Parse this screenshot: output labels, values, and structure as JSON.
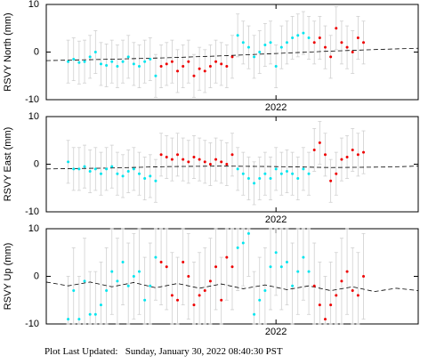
{
  "chart_data": [
    {
      "type": "scatter",
      "ylabel": "RSVY North (mm)",
      "xlim": [
        2021.79,
        2022.13
      ],
      "xticks": [
        2022
      ],
      "ylim": [
        -10,
        10
      ],
      "yticks": [
        -10,
        0,
        10
      ],
      "series": [
        {
          "color": "#00e5ee",
          "error": 4.5,
          "x": [
            2021.81,
            2021.815,
            2021.82,
            2021.825,
            2021.83,
            2021.835,
            2021.84,
            2021.845,
            2021.85,
            2021.855,
            2021.86,
            2021.865,
            2021.87,
            2021.875,
            2021.88,
            2021.885,
            2021.89,
            2021.965,
            2021.97,
            2021.975,
            2021.98,
            2021.985,
            2021.99,
            2021.995,
            2022.0,
            2022.005,
            2022.01,
            2022.015,
            2022.02,
            2022.025,
            2022.03
          ],
          "values": [
            -2,
            -1.5,
            -2.2,
            -2,
            -1,
            0,
            -2.5,
            -2.8,
            -2,
            -3,
            -2,
            -1,
            -2.5,
            -3,
            -2,
            -1.5,
            -5,
            3.5,
            2,
            1,
            -1,
            0,
            1.5,
            2,
            -3,
            1,
            2,
            3,
            3.5,
            4,
            3
          ]
        },
        {
          "color": "#ee0000",
          "error": 4.5,
          "x": [
            2021.895,
            2021.9,
            2021.905,
            2021.91,
            2021.915,
            2021.92,
            2021.925,
            2021.93,
            2021.935,
            2021.94,
            2021.945,
            2021.95,
            2021.955,
            2021.96,
            2022.035,
            2022.04,
            2022.045,
            2022.05,
            2022.055,
            2022.06,
            2022.065,
            2022.07,
            2022.075,
            2022.08
          ],
          "values": [
            -3,
            -2.5,
            -2,
            -4,
            -3,
            -2,
            -5,
            -3.5,
            -4,
            -3,
            -2,
            -2.5,
            -3,
            -1,
            2,
            3,
            1,
            -1,
            5,
            2,
            1,
            0,
            3,
            2
          ]
        },
        {
          "color": "#000000",
          "style": "dashed",
          "x": [
            2021.79,
            2021.85,
            2021.9,
            2021.95,
            2022.0,
            2022.05,
            2022.1,
            2022.13
          ],
          "values": [
            -1.8,
            -1.5,
            -1.2,
            -0.8,
            -0.3,
            0.2,
            0.6,
            0.8
          ]
        }
      ]
    },
    {
      "type": "scatter",
      "ylabel": "RSVY East (mm)",
      "xlim": [
        2021.79,
        2022.13
      ],
      "xticks": [
        2022
      ],
      "ylim": [
        -10,
        10
      ],
      "yticks": [
        -10,
        0,
        10
      ],
      "series": [
        {
          "color": "#00e5ee",
          "error": 4.5,
          "x": [
            2021.81,
            2021.815,
            2021.82,
            2021.825,
            2021.83,
            2021.835,
            2021.84,
            2021.845,
            2021.85,
            2021.855,
            2021.86,
            2021.865,
            2021.87,
            2021.875,
            2021.88,
            2021.885,
            2021.89,
            2021.965,
            2021.97,
            2021.975,
            2021.98,
            2021.985,
            2021.99,
            2021.995,
            2022.0,
            2022.005,
            2022.01,
            2022.015,
            2022.02,
            2022.025,
            2022.03
          ],
          "values": [
            0.5,
            -1,
            -1,
            -0.5,
            -1.5,
            -1,
            -2,
            -1,
            -0.5,
            -2,
            -2.5,
            -1.5,
            -1,
            -2,
            -3,
            -2.5,
            -3.5,
            -1,
            -2,
            -3,
            -4,
            -3,
            -2,
            -3,
            -1,
            -2,
            -1.5,
            -2,
            -3,
            -1,
            -2
          ]
        },
        {
          "color": "#ee0000",
          "error": 4.5,
          "x": [
            2021.895,
            2021.9,
            2021.905,
            2021.91,
            2021.915,
            2021.92,
            2021.925,
            2021.93,
            2021.935,
            2021.94,
            2021.945,
            2021.95,
            2021.955,
            2021.96,
            2022.035,
            2022.04,
            2022.045,
            2022.05,
            2022.055,
            2022.06,
            2022.065,
            2022.07,
            2022.075,
            2022.08
          ],
          "values": [
            2,
            1.5,
            1,
            2,
            1,
            0.5,
            1.5,
            1,
            0.5,
            0,
            1,
            0.5,
            0,
            2,
            3,
            4.5,
            2,
            -3.5,
            -2,
            1,
            1.5,
            3,
            2,
            2.5
          ]
        },
        {
          "color": "#000000",
          "style": "dashed",
          "x": [
            2021.79,
            2021.85,
            2021.9,
            2021.95,
            2022.0,
            2022.05,
            2022.1,
            2022.13
          ],
          "values": [
            -1,
            -0.8,
            -0.5,
            -0.4,
            -0.5,
            -0.7,
            -0.6,
            -0.4
          ]
        }
      ]
    },
    {
      "type": "scatter",
      "ylabel": "RSVY Up (mm)",
      "xlim": [
        2021.79,
        2022.13
      ],
      "xticks": [
        2022
      ],
      "ylim": [
        -10,
        10
      ],
      "yticks": [
        -10,
        0,
        10
      ],
      "series": [
        {
          "color": "#00e5ee",
          "error": 9,
          "x": [
            2021.81,
            2021.815,
            2021.82,
            2021.825,
            2021.83,
            2021.835,
            2021.84,
            2021.845,
            2021.85,
            2021.855,
            2021.86,
            2021.865,
            2021.87,
            2021.875,
            2021.88,
            2021.885,
            2021.89,
            2021.965,
            2021.97,
            2021.975,
            2021.98,
            2021.985,
            2021.99,
            2021.995,
            2022.0,
            2022.005,
            2022.01,
            2022.015,
            2022.02,
            2022.025,
            2022.03
          ],
          "values": [
            -9,
            -3,
            -9,
            -1,
            -8,
            -8,
            -6,
            -3,
            1,
            -1,
            3,
            -2,
            0,
            1,
            -5,
            -2,
            4,
            6,
            7,
            9,
            -8,
            -5,
            -3,
            2,
            5,
            2,
            3,
            -2,
            1,
            4,
            1
          ]
        },
        {
          "color": "#ee0000",
          "error": 9,
          "x": [
            2021.895,
            2021.9,
            2021.905,
            2021.91,
            2021.915,
            2021.92,
            2021.925,
            2021.93,
            2021.935,
            2021.94,
            2021.945,
            2021.95,
            2021.955,
            2021.96,
            2022.035,
            2022.04,
            2022.045,
            2022.05,
            2022.055,
            2022.06,
            2022.065,
            2022.07,
            2022.075,
            2022.08
          ],
          "values": [
            3,
            2,
            -4,
            -5,
            3,
            0,
            -6,
            -4,
            -3,
            -1,
            2,
            -5,
            4,
            2,
            -2,
            -6,
            -9,
            -6,
            -4,
            -1,
            1,
            -3,
            -4,
            0
          ]
        },
        {
          "color": "#000000",
          "style": "dashed",
          "x": [
            2021.79,
            2021.81,
            2021.83,
            2021.85,
            2021.87,
            2021.89,
            2021.91,
            2021.93,
            2021.95,
            2021.97,
            2021.99,
            2022.01,
            2022.03,
            2022.05,
            2022.07,
            2022.09,
            2022.11,
            2022.13
          ],
          "values": [
            -1.2,
            -2,
            -1.2,
            -2.2,
            -1.3,
            -2.4,
            -1.5,
            -2.5,
            -1.6,
            -2.6,
            -1.8,
            -2.8,
            -2,
            -3,
            -2.2,
            -3.2,
            -2.5,
            -3
          ]
        }
      ]
    }
  ],
  "footer": "Plot Last Updated:   Sunday, January 30, 2022 08:40:30 PST"
}
